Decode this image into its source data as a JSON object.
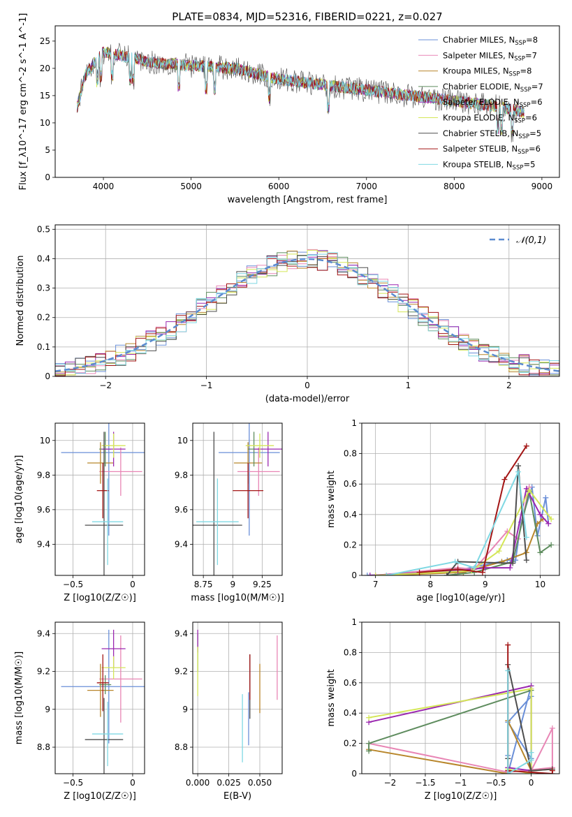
{
  "title": "PLATE=0834, MJD=52316, FIBERID=0221, z=0.027",
  "models": [
    {
      "name": "Chabrier MILES",
      "n": "8",
      "color": "#6a8fd8"
    },
    {
      "name": "Salpeter MILES",
      "n": "7",
      "color": "#e886b5"
    },
    {
      "name": "Kroupa MILES",
      "n": "8",
      "color": "#b8862b"
    },
    {
      "name": "Chabrier ELODIE",
      "n": "7",
      "color": "#5e8c5e"
    },
    {
      "name": "Salpeter ELODIE",
      "n": "6",
      "color": "#9b27b0"
    },
    {
      "name": "Kroupa ELODIE",
      "n": "6",
      "color": "#d4e657"
    },
    {
      "name": "Chabrier STELIB",
      "n": "5",
      "color": "#4d4d4d"
    },
    {
      "name": "Salpeter STELIB",
      "n": "6",
      "color": "#a31515"
    },
    {
      "name": "Kroupa STELIB",
      "n": "5",
      "color": "#7fd8e3"
    }
  ],
  "chart_data": [
    {
      "id": "spectrum",
      "type": "line",
      "xlabel": "wavelength [Angstrom, rest frame]",
      "ylabel": "Flux [f_λ10^-17 erg cm^-2 s^-1 A^-1]",
      "xlim": [
        3450,
        9200
      ],
      "ylim": [
        0,
        27.8
      ],
      "xticks": [
        4000,
        5000,
        6000,
        7000,
        8000,
        9000
      ],
      "yticks": [
        0,
        5,
        10,
        15,
        20,
        25
      ],
      "continuum": {
        "x": [
          3700,
          3800,
          4000,
          4300,
          4600,
          5000,
          5500,
          6000,
          6500,
          7000,
          7500,
          8000,
          8500,
          8800
        ],
        "y": [
          13,
          19,
          23,
          22,
          21,
          20.5,
          20,
          18,
          17,
          16,
          15,
          14,
          13,
          12
        ]
      },
      "legend": "upper right"
    },
    {
      "id": "residuals",
      "type": "bar",
      "xlabel": "(data-model)/error",
      "ylabel": "Normed distribution",
      "xlim": [
        -2.5,
        2.5
      ],
      "ylim": [
        0,
        0.515
      ],
      "xticks": [
        -2,
        -1,
        0,
        1,
        2
      ],
      "yticks": [
        0.0,
        0.1,
        0.2,
        0.3,
        0.4,
        0.5
      ],
      "reference": {
        "name": "𝒩(0,1)",
        "mean": 0,
        "sigma": 1
      },
      "legend": "upper right"
    },
    {
      "id": "age_vs_Z",
      "type": "scatter",
      "xlabel": "Z [log10(Z/Z☉)]",
      "ylabel": "age [log10(age/yr)]",
      "xlim": [
        -0.65,
        0.1
      ],
      "ylim": [
        9.22,
        10.1
      ],
      "xticks": [
        -0.5,
        0.0
      ],
      "yticks": [
        9.4,
        9.6,
        9.8,
        10.0
      ],
      "points": [
        {
          "model": 0,
          "x": -0.2,
          "xerr": 0.4,
          "y": 9.93,
          "yerr": 0.48
        },
        {
          "model": 1,
          "x": -0.1,
          "xerr": 0.18,
          "y": 9.82,
          "yerr": 0.14
        },
        {
          "model": 2,
          "x": -0.27,
          "xerr": 0.11,
          "y": 9.87,
          "yerr": 0.12
        },
        {
          "model": 3,
          "x": -0.23,
          "xerr": 0.05,
          "y": 9.95,
          "yerr": 0.1
        },
        {
          "model": 4,
          "x": -0.16,
          "xerr": 0.1,
          "y": 9.95,
          "yerr": 0.1
        },
        {
          "model": 5,
          "x": -0.16,
          "xerr": 0.1,
          "y": 9.97,
          "yerr": 0.07
        },
        {
          "model": 6,
          "x": -0.24,
          "xerr": 0.16,
          "y": 9.51,
          "yerr": 0.54
        },
        {
          "model": 7,
          "x": -0.25,
          "xerr": 0.05,
          "y": 9.71,
          "yerr": 0.16
        },
        {
          "model": 8,
          "x": -0.21,
          "xerr": 0.13,
          "y": 9.53,
          "yerr": 0.25
        }
      ]
    },
    {
      "id": "age_vs_mass",
      "type": "scatter",
      "xlabel": "mass [log10(M/M☉)]",
      "ylabel": "",
      "xlim": [
        8.66,
        9.42
      ],
      "ylim": [
        9.22,
        10.1
      ],
      "xticks": [
        8.75,
        9.0,
        9.25
      ],
      "yticks": [
        9.4,
        9.6,
        9.8,
        10.0
      ],
      "points": [
        {
          "model": 0,
          "x": 9.14,
          "xerr": 0.26,
          "y": 9.93,
          "yerr": 0.48
        },
        {
          "model": 1,
          "x": 9.22,
          "xerr": 0.18,
          "y": 9.82,
          "yerr": 0.14
        },
        {
          "model": 2,
          "x": 9.13,
          "xerr": 0.12,
          "y": 9.87,
          "yerr": 0.12
        },
        {
          "model": 3,
          "x": 9.18,
          "xerr": 0.05,
          "y": 9.95,
          "yerr": 0.1
        },
        {
          "model": 4,
          "x": 9.3,
          "xerr": 0.12,
          "y": 9.95,
          "yerr": 0.1
        },
        {
          "model": 5,
          "x": 9.23,
          "xerr": 0.12,
          "y": 9.97,
          "yerr": 0.07
        },
        {
          "model": 6,
          "x": 8.84,
          "xerr": 0.24,
          "y": 9.51,
          "yerr": 0.54
        },
        {
          "model": 7,
          "x": 9.13,
          "xerr": 0.13,
          "y": 9.71,
          "yerr": 0.16
        },
        {
          "model": 8,
          "x": 8.87,
          "xerr": 0.18,
          "y": 9.53,
          "yerr": 0.25
        }
      ]
    },
    {
      "id": "massweight_vs_age",
      "type": "line",
      "xlabel": "age [log10(age/yr)]",
      "ylabel": "mass weight",
      "xlim": [
        6.75,
        10.35
      ],
      "ylim": [
        0,
        1.0
      ],
      "xticks": [
        7,
        8,
        9,
        10
      ],
      "yticks": [
        0.0,
        0.2,
        0.4,
        0.6,
        0.8,
        1.0
      ],
      "series": [
        {
          "model": 0,
          "x": [
            6.85,
            7.8,
            8.45,
            9.4,
            9.55,
            9.65,
            9.85,
            9.95,
            10.1,
            10.15
          ],
          "y": [
            0.0,
            0.01,
            0.03,
            0.1,
            0.1,
            0.35,
            0.58,
            0.26,
            0.51,
            0.34
          ]
        },
        {
          "model": 1,
          "x": [
            7.0,
            8.5,
            8.8,
            9.4,
            9.6,
            9.8
          ],
          "y": [
            0.0,
            0.05,
            0.04,
            0.29,
            0.24,
            0.58
          ]
        },
        {
          "model": 2,
          "x": [
            7.2,
            8.6,
            9.3,
            9.75,
            9.95,
            10.05
          ],
          "y": [
            0.0,
            0.02,
            0.09,
            0.15,
            0.34,
            0.37
          ]
        },
        {
          "model": 3,
          "x": [
            8.3,
            8.8,
            9.5,
            9.8,
            10.0,
            10.2
          ],
          "y": [
            0.0,
            0.02,
            0.09,
            0.55,
            0.15,
            0.2
          ]
        },
        {
          "model": 4,
          "x": [
            6.9,
            8.5,
            9.0,
            9.45,
            9.75,
            10.0,
            10.15
          ],
          "y": [
            0.0,
            0.03,
            0.05,
            0.05,
            0.57,
            0.4,
            0.34
          ]
        },
        {
          "model": 5,
          "x": [
            7.0,
            8.75,
            9.25,
            9.8,
            10.2
          ],
          "y": [
            0.0,
            0.03,
            0.16,
            0.56,
            0.37
          ]
        },
        {
          "model": 6,
          "x": [
            8.3,
            8.5,
            9.5,
            9.6,
            9.75
          ],
          "y": [
            0.0,
            0.09,
            0.08,
            0.72,
            0.1
          ]
        },
        {
          "model": 7,
          "x": [
            7.8,
            8.5,
            8.95,
            9.35,
            9.75
          ],
          "y": [
            0.02,
            0.04,
            0.02,
            0.63,
            0.85
          ]
        },
        {
          "model": 8,
          "x": [
            7.2,
            8.45,
            8.8,
            9.6,
            9.75
          ],
          "y": [
            0.0,
            0.09,
            0.05,
            0.68,
            0.25
          ]
        }
      ]
    },
    {
      "id": "mass_vs_Z",
      "type": "scatter",
      "xlabel": "Z [log10(Z/Z☉)]",
      "ylabel": "mass [log10(M/M☉)]",
      "xlim": [
        -0.65,
        0.1
      ],
      "ylim": [
        8.66,
        9.46
      ],
      "xticks": [
        -0.5,
        0.0
      ],
      "yticks": [
        8.8,
        9.0,
        9.2,
        9.4
      ],
      "points": [
        {
          "model": 0,
          "x": -0.2,
          "xerr": 0.4,
          "y": 9.12,
          "yerr": 0.3
        },
        {
          "model": 1,
          "x": -0.1,
          "xerr": 0.18,
          "y": 9.16,
          "yerr": 0.23
        },
        {
          "model": 2,
          "x": -0.27,
          "xerr": 0.11,
          "y": 9.1,
          "yerr": 0.14
        },
        {
          "model": 3,
          "x": -0.23,
          "xerr": 0.05,
          "y": 9.13,
          "yerr": 0.05
        },
        {
          "model": 4,
          "x": -0.16,
          "xerr": 0.1,
          "y": 9.32,
          "yerr": 0.1
        },
        {
          "model": 5,
          "x": -0.16,
          "xerr": 0.1,
          "y": 9.22,
          "yerr": 0.06
        },
        {
          "model": 6,
          "x": -0.24,
          "xerr": 0.16,
          "y": 8.84,
          "yerr": 0.22
        },
        {
          "model": 7,
          "x": -0.25,
          "xerr": 0.05,
          "y": 9.14,
          "yerr": 0.15
        },
        {
          "model": 8,
          "x": -0.21,
          "xerr": 0.13,
          "y": 8.87,
          "yerr": 0.17
        }
      ]
    },
    {
      "id": "mass_vs_ebv",
      "type": "scatter",
      "xlabel": "E(B-V)",
      "ylabel": "",
      "xlim": [
        -0.004,
        0.068
      ],
      "ylim": [
        8.66,
        9.46
      ],
      "xticks": [
        0.0,
        0.025,
        0.05
      ],
      "xtick_labels": [
        "0.000",
        "0.025",
        "0.050"
      ],
      "yticks": [
        8.8,
        9.0,
        9.2,
        9.4
      ],
      "points": [
        {
          "model": 0,
          "x": 0.041,
          "xerr": 0,
          "y": 8.95,
          "yerr": 0.14
        },
        {
          "model": 1,
          "x": 0.064,
          "xerr": 0,
          "y": 9.22,
          "yerr": 0.17
        },
        {
          "model": 2,
          "x": 0.05,
          "xerr": 0,
          "y": 9.11,
          "yerr": 0.13
        },
        {
          "model": 3,
          "x": 0.0,
          "xerr": 0,
          "y": 9.3,
          "yerr": 0.1
        },
        {
          "model": 4,
          "x": 0.0,
          "xerr": 0,
          "y": 9.36,
          "yerr": 0.06
        },
        {
          "model": 5,
          "x": 0.0,
          "xerr": 0,
          "y": 9.2,
          "yerr": 0.13
        },
        {
          "model": 6,
          "x": 0.042,
          "xerr": 0,
          "y": 9.12,
          "yerr": 0.17
        },
        {
          "model": 7,
          "x": 0.042,
          "xerr": 0,
          "y": 9.17,
          "yerr": 0.12
        },
        {
          "model": 8,
          "x": 0.036,
          "xerr": 0,
          "y": 8.9,
          "yerr": 0.18
        }
      ]
    },
    {
      "id": "massweight_vs_Z",
      "type": "line",
      "xlabel": "Z [log10(Z/Z☉)]",
      "ylabel": "mass weight",
      "xlim": [
        -2.4,
        0.4
      ],
      "ylim": [
        0,
        1.0
      ],
      "xticks": [
        -2.0,
        -1.5,
        -1.0,
        -0.5,
        0.0
      ],
      "yticks": [
        0.0,
        0.2,
        0.4,
        0.6,
        0.8,
        1.0
      ],
      "series": [
        {
          "model": 0,
          "x": [
            -0.33,
            -0.33,
            0.0,
            0.0,
            -0.33,
            0.0
          ],
          "y": [
            0.12,
            0.0,
            0.58,
            0.51,
            0.34,
            0.1
          ]
        },
        {
          "model": 1,
          "x": [
            -2.3,
            -0.33,
            0.3,
            0.3,
            0.0
          ],
          "y": [
            0.2,
            0.01,
            0.04,
            0.3,
            0.02
          ]
        },
        {
          "model": 2,
          "x": [
            -2.3,
            -0.33,
            -0.33,
            0.0,
            0.3
          ],
          "y": [
            0.16,
            0.0,
            0.35,
            0.02,
            0.03
          ]
        },
        {
          "model": 3,
          "x": [
            -2.3,
            -2.3,
            0.0,
            0.0
          ],
          "y": [
            0.15,
            0.2,
            0.55,
            0.0
          ]
        },
        {
          "model": 4,
          "x": [
            -2.3,
            0.0,
            0.0,
            -0.33
          ],
          "y": [
            0.34,
            0.58,
            0.02,
            0.04
          ]
        },
        {
          "model": 5,
          "x": [
            -2.3,
            0.0,
            0.0,
            -0.33
          ],
          "y": [
            0.37,
            0.56,
            0.0,
            0.03
          ]
        },
        {
          "model": 6,
          "x": [
            -0.33,
            -0.33,
            0.0,
            0.3
          ],
          "y": [
            0.1,
            0.72,
            0.02,
            0.03
          ]
        },
        {
          "model": 7,
          "x": [
            -0.33,
            -0.33,
            0.3,
            0.3
          ],
          "y": [
            0.85,
            0.02,
            0.0,
            0.02
          ]
        },
        {
          "model": 8,
          "x": [
            -0.33,
            -0.33,
            0.0,
            0.0
          ],
          "y": [
            0.68,
            0.0,
            0.09,
            0.14
          ]
        }
      ]
    }
  ]
}
